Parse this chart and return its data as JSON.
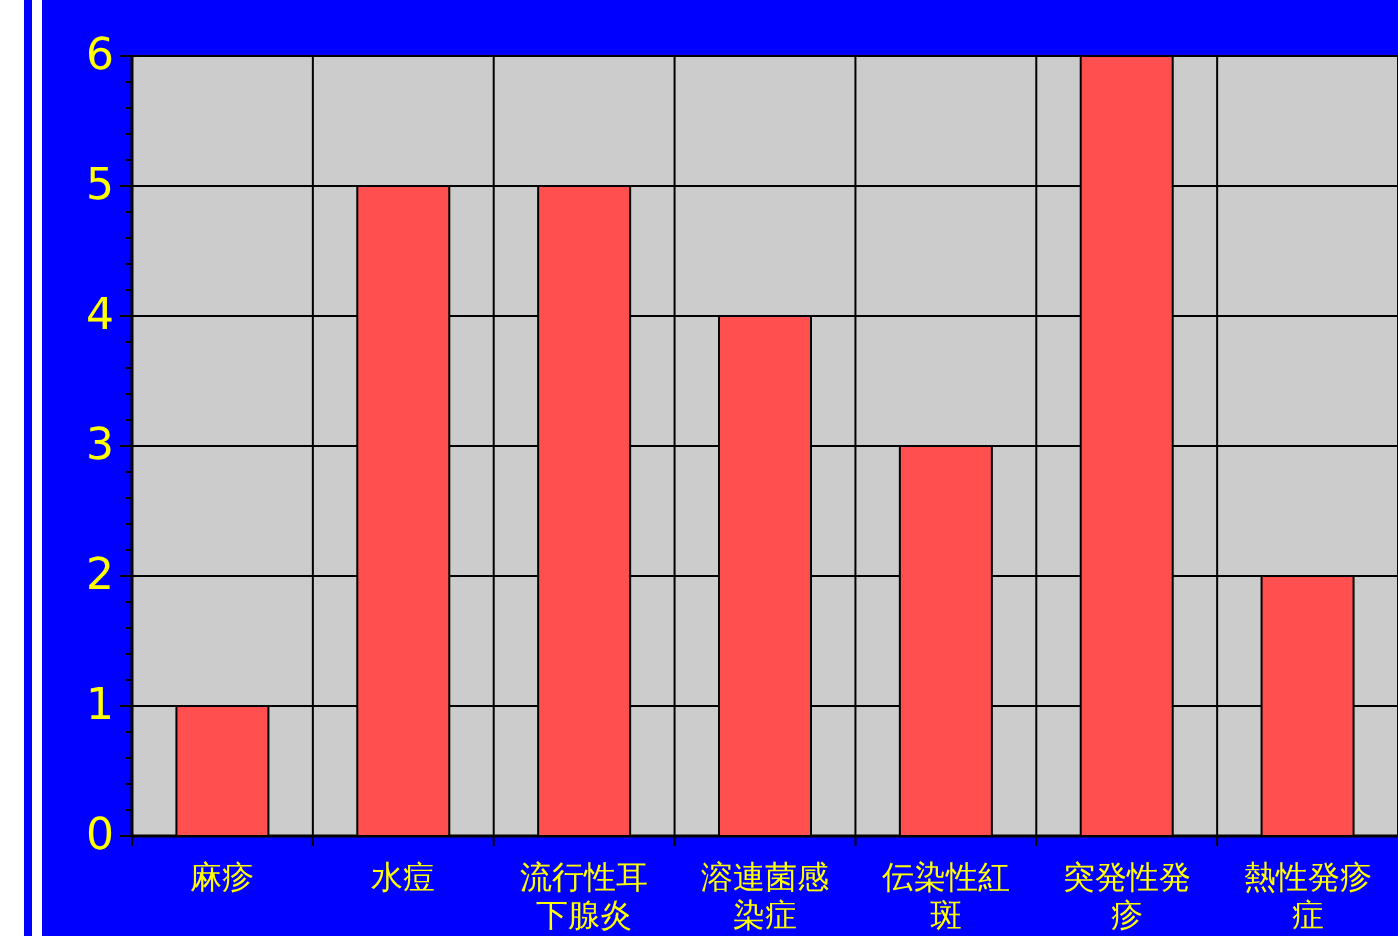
{
  "chart_data": {
    "type": "bar",
    "categories": [
      "麻疹",
      "水痘",
      "流行性耳下腺炎",
      "溶連菌感染症",
      "伝染性紅斑",
      "突発性発疹",
      "熱性発疹症"
    ],
    "values": [
      1,
      5,
      5,
      4,
      3,
      6,
      2
    ],
    "color": "#ff4f4f",
    "ylim": [
      0,
      6
    ],
    "yticks": [
      0,
      {
        "value": 0.2,
        "label": null
      },
      {
        "value": 0.4,
        "label": null
      },
      {
        "value": 0.6,
        "label": null
      },
      {
        "value": 0.8,
        "label": null
      },
      1,
      {
        "value": 1.2,
        "label": null
      },
      {
        "value": 1.4,
        "label": null
      },
      {
        "value": 1.6,
        "label": null
      },
      {
        "value": 1.8,
        "label": null
      },
      2,
      {
        "value": 2.2,
        "label": null
      },
      {
        "value": 2.4,
        "label": null
      },
      {
        "value": 2.6,
        "label": null
      },
      {
        "value": 2.8,
        "label": null
      },
      3,
      {
        "value": 3.2,
        "label": null
      },
      {
        "value": 3.4,
        "label": null
      },
      {
        "value": 3.6,
        "label": null
      },
      {
        "value": 3.8,
        "label": null
      },
      4,
      {
        "value": 4.2,
        "label": null
      },
      {
        "value": 4.4,
        "label": null
      },
      {
        "value": 4.6,
        "label": null
      },
      {
        "value": 4.8,
        "label": null
      },
      5,
      {
        "value": 5.2,
        "label": null
      },
      {
        "value": 5.4,
        "label": null
      },
      {
        "value": 5.6,
        "label": null
      },
      {
        "value": 5.8,
        "label": null
      },
      6
    ],
    "grid": true
  }
}
